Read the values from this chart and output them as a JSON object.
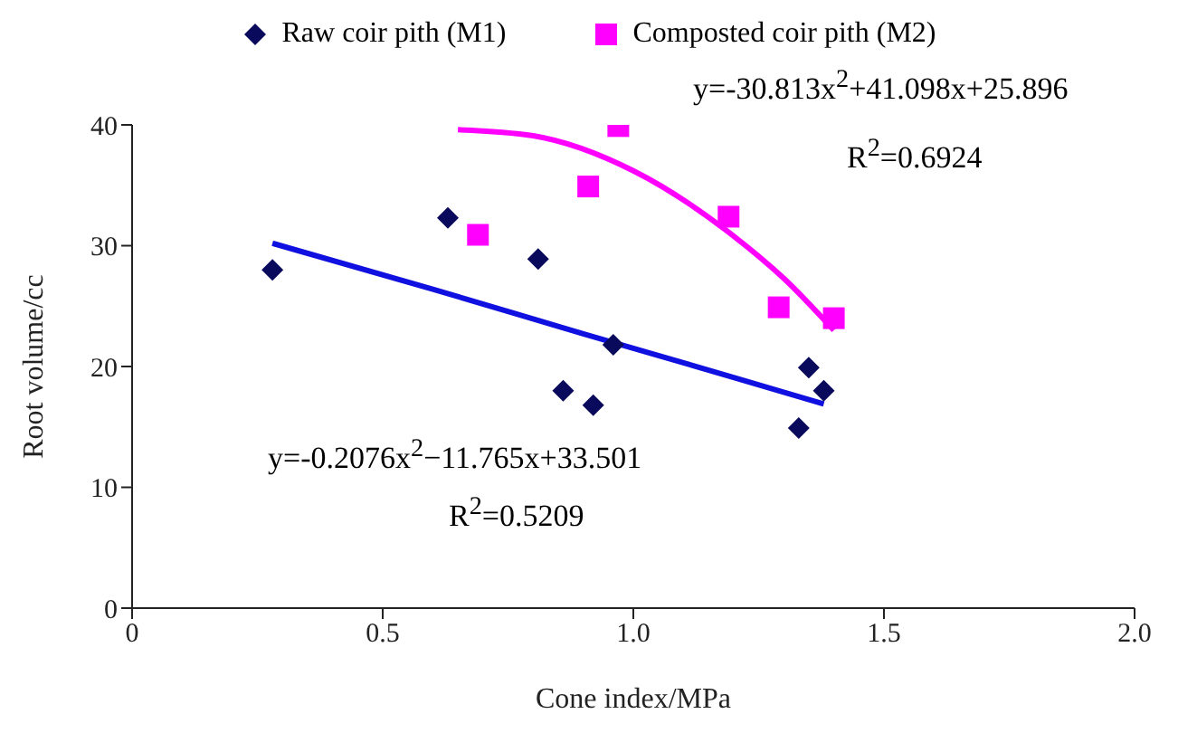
{
  "chart_data": {
    "type": "scatter",
    "xlabel": "Cone index/MPa",
    "ylabel": "Root volume/cc",
    "xlim": [
      0,
      2
    ],
    "xticks": [
      0,
      {
        "value": 0.5,
        "label": "0.5"
      },
      {
        "value": 1,
        "label": "1.0"
      },
      {
        "value": 1.5,
        "label": "1.5"
      },
      {
        "value": 2,
        "label": "2.0"
      }
    ],
    "ylim": [
      0,
      40
    ],
    "yticks": [
      0,
      10,
      20,
      30,
      40
    ],
    "legend": "top",
    "series": [
      {
        "name": "Raw coir pith (M1)",
        "marker": "diamond",
        "color": "#0a0a5c",
        "x": [
          0.28,
          0.63,
          0.81,
          0.86,
          0.92,
          0.96,
          1.33,
          1.35,
          1.38
        ],
        "values": [
          28,
          32.3,
          28.9,
          18,
          16.8,
          21.8,
          14.9,
          19.9,
          18
        ]
      },
      {
        "name": "Composted coir pith (M2)",
        "marker": "square",
        "color": "#ff00ff",
        "x": [
          0.69,
          0.91,
          0.97,
          1.19,
          1.29,
          1.4
        ],
        "values": [
          30.9,
          34.9,
          39.9,
          32.4,
          24.9,
          24
        ]
      },
      {
        "type": "line",
        "marker": "none",
        "color": "#1010e0",
        "x": [
          0.28,
          0.6,
          0.9,
          1.2,
          1.38
        ],
        "values": [
          30.2,
          26.4,
          22.7,
          19.1,
          16.9
        ]
      },
      {
        "type": "line",
        "marker": "none",
        "color": "#ff00ff",
        "x": [
          0.65,
          0.8,
          1.0,
          1.2,
          1.3,
          1.4
        ],
        "values": [
          39.6,
          39.1,
          36.2,
          30.8,
          27.3,
          23
        ]
      }
    ],
    "annotations": [
      "y=-30.813x$^{2}$+41.098x+25.896",
      "R$^{2}$=0.6924",
      "y=-0.2076x$^{2}$−11.765x+33.501",
      "R$^{2}$=0.5209"
    ]
  }
}
